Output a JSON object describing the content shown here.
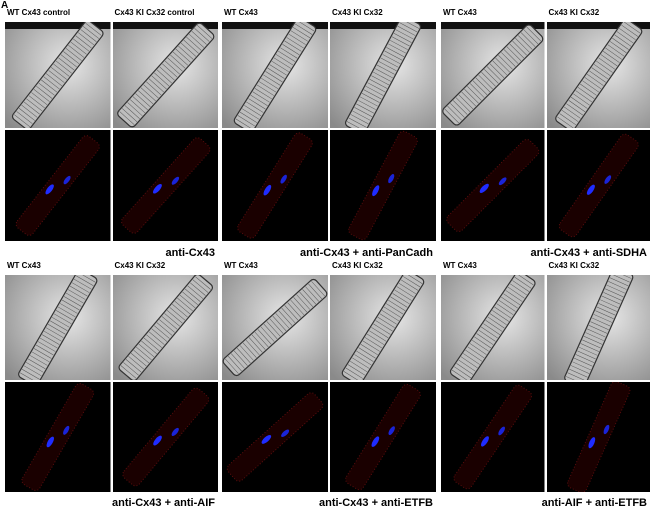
{
  "panel_label": "A",
  "groups": [
    {
      "headers": [
        "WT Cx43 control",
        "Cx43 KI Cx32 control"
      ],
      "caption": "anti-Cx43"
    },
    {
      "headers": [
        "WT Cx43",
        "Cx43 KI Cx32"
      ],
      "caption": "anti-Cx43 + anti-PanCadh"
    },
    {
      "headers": [
        "WT Cx43",
        "Cx43 KI Cx32"
      ],
      "caption": "anti-Cx43 + anti-SDHA"
    },
    {
      "headers": [
        "WT Cx43",
        "Cx43 KI Cx32"
      ],
      "caption": "anti-Cx43 + anti-AIF"
    },
    {
      "headers": [
        "WT Cx43",
        "Cx43 KI Cx32"
      ],
      "caption": "anti-Cx43 + anti-ETFB"
    },
    {
      "headers": [
        "WT Cx43",
        "Cx43 KI Cx32"
      ],
      "caption": "anti-AIF + anti-ETFB"
    }
  ]
}
